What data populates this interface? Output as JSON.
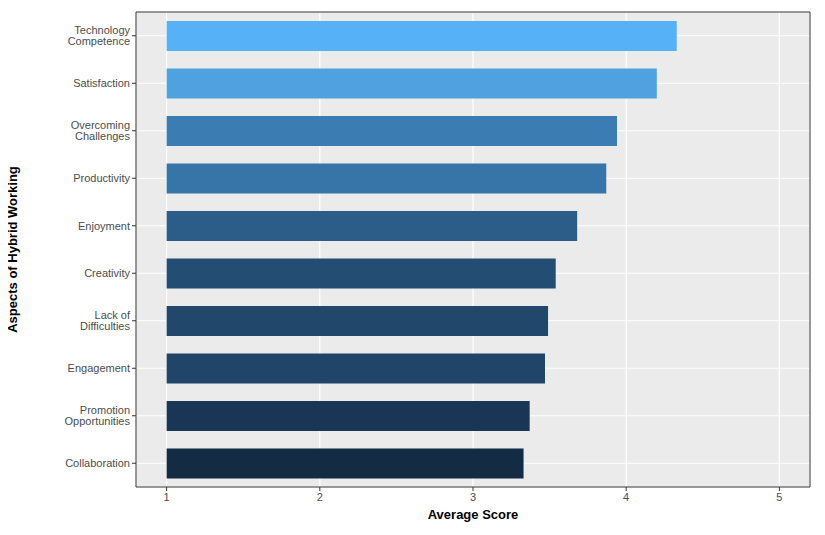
{
  "chart_data": {
    "type": "bar",
    "orientation": "horizontal",
    "x_label": "Average Score",
    "y_label": "Aspects of Hybrid Working",
    "categories": [
      "Technology Competence",
      "Satisfaction",
      "Overcoming Challenges",
      "Productivity",
      "Enjoyment",
      "Creativity",
      "Lack of Difficulties",
      "Engagement",
      "Promotion Opportunities",
      "Collaboration"
    ],
    "values": [
      4.33,
      4.2,
      3.94,
      3.87,
      3.68,
      3.54,
      3.49,
      3.47,
      3.37,
      3.33
    ],
    "colors": [
      "#56B1F7",
      "#4FA1E0",
      "#3B7DB2",
      "#3774A8",
      "#2C5D89",
      "#244D73",
      "#21476B",
      "#204569",
      "#193754",
      "#132B43"
    ],
    "xlim": [
      0.8,
      5.2
    ],
    "xticks": [
      1,
      2,
      3,
      4,
      5
    ],
    "grid": true
  }
}
